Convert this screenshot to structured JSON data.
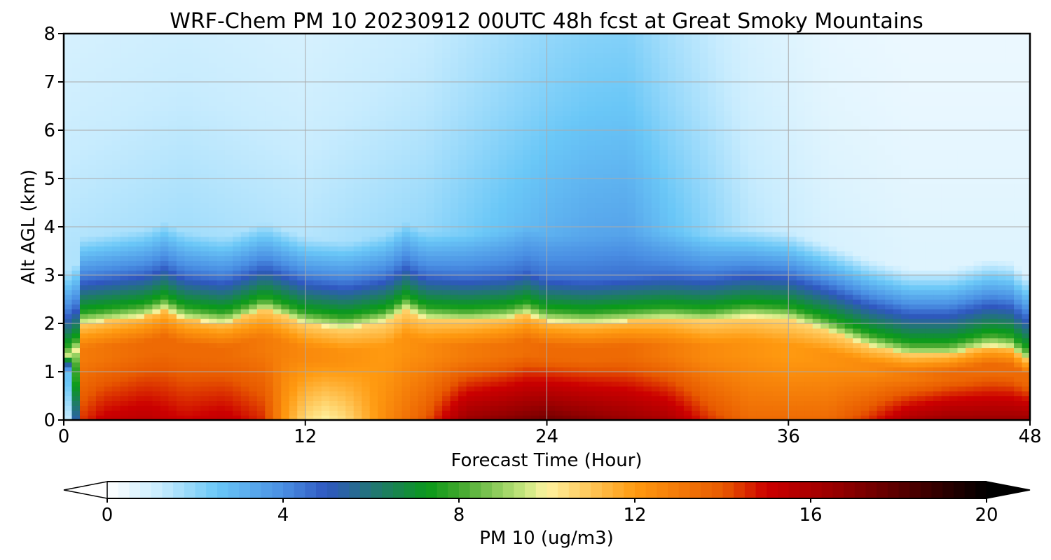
{
  "chart_data": {
    "type": "heatmap",
    "title": "WRF-Chem PM 10  20230912 00UTC 48h fcst at Great Smoky Mountains",
    "xlabel": "Forecast Time (Hour)",
    "ylabel": "Alt AGL (km)",
    "xlim": [
      0,
      48
    ],
    "ylim": [
      0,
      8
    ],
    "x_ticks": [
      0,
      12,
      24,
      36,
      48
    ],
    "y_ticks": [
      0,
      1,
      2,
      3,
      4,
      5,
      6,
      7,
      8
    ],
    "grid": true,
    "colorbar": {
      "label": "PM 10  (ug/m3)",
      "orientation": "horizontal",
      "position": "bottom",
      "range": [
        0,
        20
      ],
      "ticks": [
        0,
        4,
        8,
        12,
        16,
        20
      ],
      "extend": "both",
      "colormap_stops": [
        {
          "value": 0,
          "color": "#ffffff"
        },
        {
          "value": 1.2,
          "color": "#c8ecfe"
        },
        {
          "value": 2.5,
          "color": "#6ac7f7"
        },
        {
          "value": 4,
          "color": "#4a8fe3"
        },
        {
          "value": 5,
          "color": "#2f57c0"
        },
        {
          "value": 6.2,
          "color": "#1f7a6a"
        },
        {
          "value": 7.3,
          "color": "#0a9a1a"
        },
        {
          "value": 8,
          "color": "#3fa72c"
        },
        {
          "value": 9.5,
          "color": "#c8e880"
        },
        {
          "value": 10,
          "color": "#fff3a0"
        },
        {
          "value": 12,
          "color": "#ff9a10"
        },
        {
          "value": 14,
          "color": "#e85a00"
        },
        {
          "value": 15,
          "color": "#cc0000"
        },
        {
          "value": 16.5,
          "color": "#9a0000"
        },
        {
          "value": 18,
          "color": "#5a0000"
        },
        {
          "value": 20,
          "color": "#000000"
        }
      ]
    },
    "boundary_layer_top_km": {
      "hours": [
        0.5,
        1,
        2,
        4,
        5,
        6,
        8,
        10,
        12,
        14,
        16,
        17,
        18,
        20,
        22,
        23,
        24,
        26,
        28,
        30,
        32,
        34,
        36,
        38,
        40,
        42,
        44,
        46,
        47,
        48
      ],
      "heights": [
        1.3,
        2.0,
        2.05,
        2.15,
        2.3,
        2.1,
        2.0,
        2.3,
        2.0,
        1.9,
        2.05,
        2.3,
        2.1,
        2.05,
        2.1,
        2.2,
        2.05,
        2.0,
        2.05,
        2.1,
        2.05,
        2.15,
        2.1,
        1.85,
        1.55,
        1.35,
        1.35,
        1.55,
        1.5,
        1.2
      ]
    },
    "surface_pm10_ugm3": {
      "hours": [
        0,
        0.5,
        1,
        2,
        4,
        6,
        8,
        10,
        11,
        12,
        13,
        14,
        16,
        18,
        20,
        22,
        24,
        26,
        28,
        30,
        32,
        34,
        36,
        38,
        40,
        42,
        44,
        46,
        48
      ],
      "values": [
        0,
        3,
        14.5,
        15.2,
        15.5,
        15,
        15.3,
        14.5,
        12,
        10.5,
        10,
        10.5,
        12.5,
        14,
        16.5,
        17,
        17.5,
        17,
        16.5,
        16,
        14.5,
        13.5,
        13.5,
        13.5,
        14.5,
        16,
        16.5,
        16.5,
        16.5
      ]
    },
    "boundary_layer_mean_pm10_ugm3": {
      "hours": [
        0,
        1,
        4,
        8,
        12,
        16,
        20,
        24,
        28,
        32,
        36,
        40,
        44,
        48
      ],
      "values": [
        0,
        13,
        13.5,
        13.5,
        12.5,
        12,
        13,
        13.5,
        13.5,
        12.5,
        12,
        12.5,
        13.5,
        13.5
      ]
    },
    "free_troposphere_pm10_ugm3": {
      "hours": [
        0,
        6,
        12,
        18,
        22,
        24,
        26,
        28,
        30,
        34,
        38,
        42,
        46,
        48
      ],
      "values": [
        1.5,
        1.8,
        1.5,
        2,
        2.8,
        3.2,
        3.5,
        3.6,
        2.8,
        1.5,
        0.9,
        0.7,
        0.7,
        0.7
      ]
    },
    "upper_level_pm10_ugm3": {
      "altitudes_km": [
        3.5,
        5,
        6.5,
        8
      ],
      "scale": [
        1.0,
        0.85,
        0.7,
        0.6
      ]
    },
    "data_note_hint": ""
  }
}
